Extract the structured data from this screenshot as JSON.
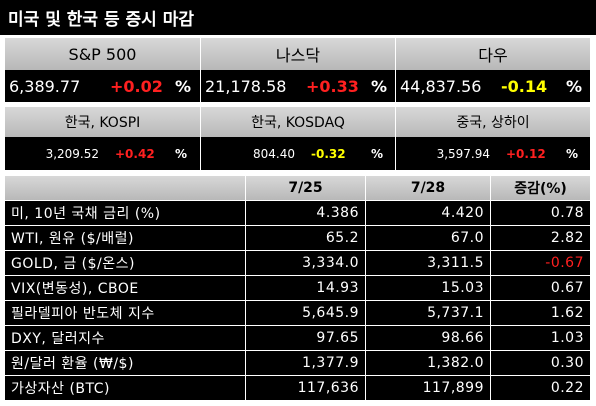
{
  "header": {
    "title": "미국 및 한국 등 증시 마감"
  },
  "indices": [
    {
      "name": "S&P 500",
      "value": "6,389.77",
      "change": "+0.02",
      "unit": "%",
      "color": "#ff2020"
    },
    {
      "name": "나스닥",
      "value": "21,178.58",
      "change": "+0.33",
      "unit": "%",
      "color": "#ff2020"
    },
    {
      "name": "다우",
      "value": "44,837.56",
      "change": "-0.14",
      "unit": "%",
      "color": "#ffff00"
    },
    {
      "name": "한국, KOSPI",
      "value": "3,209.52",
      "change": "+0.42",
      "unit": "%",
      "color": "#ff2020"
    },
    {
      "name": "한국, KOSDAQ",
      "value": "804.40",
      "change": "-0.32",
      "unit": "%",
      "color": "#ffff00"
    },
    {
      "name": "중국, 상하이",
      "value": "3,597.94",
      "change": "+0.12",
      "unit": "%",
      "color": "#ff2020"
    }
  ],
  "table": {
    "columns": [
      "7/25",
      "7/28",
      "증감(%)"
    ],
    "rows": [
      [
        "미, 10년 국채 금리 (%)",
        "4.386",
        "4.420",
        "0.78"
      ],
      [
        "WTI, 원유 ($/배럴)",
        "65.2",
        "67.0",
        "2.82"
      ],
      [
        "GOLD, 금 ($/온스)",
        "3,334.0",
        "3,311.5",
        "-0.67"
      ],
      [
        "VIX(변동성), CBOE",
        "14.93",
        "15.03",
        "0.67"
      ],
      [
        "필라델피아 반도체 지수",
        "5,645.9",
        "5,737.1",
        "1.62"
      ],
      [
        "DXY, 달러지수",
        "97.65",
        "98.66",
        "1.03"
      ],
      [
        "원/달러 환율 (₩/$)",
        "1,377.9",
        "1,382.0",
        "0.30"
      ],
      [
        "가상자산 (BTC)",
        "117,636",
        "117,899",
        "0.22"
      ]
    ],
    "change_colors": [
      "#ffffff",
      "#ffffff",
      "#ff2020",
      "#ffffff",
      "#ffffff",
      "#ffffff",
      "#ffffff",
      "#ffffff"
    ]
  }
}
